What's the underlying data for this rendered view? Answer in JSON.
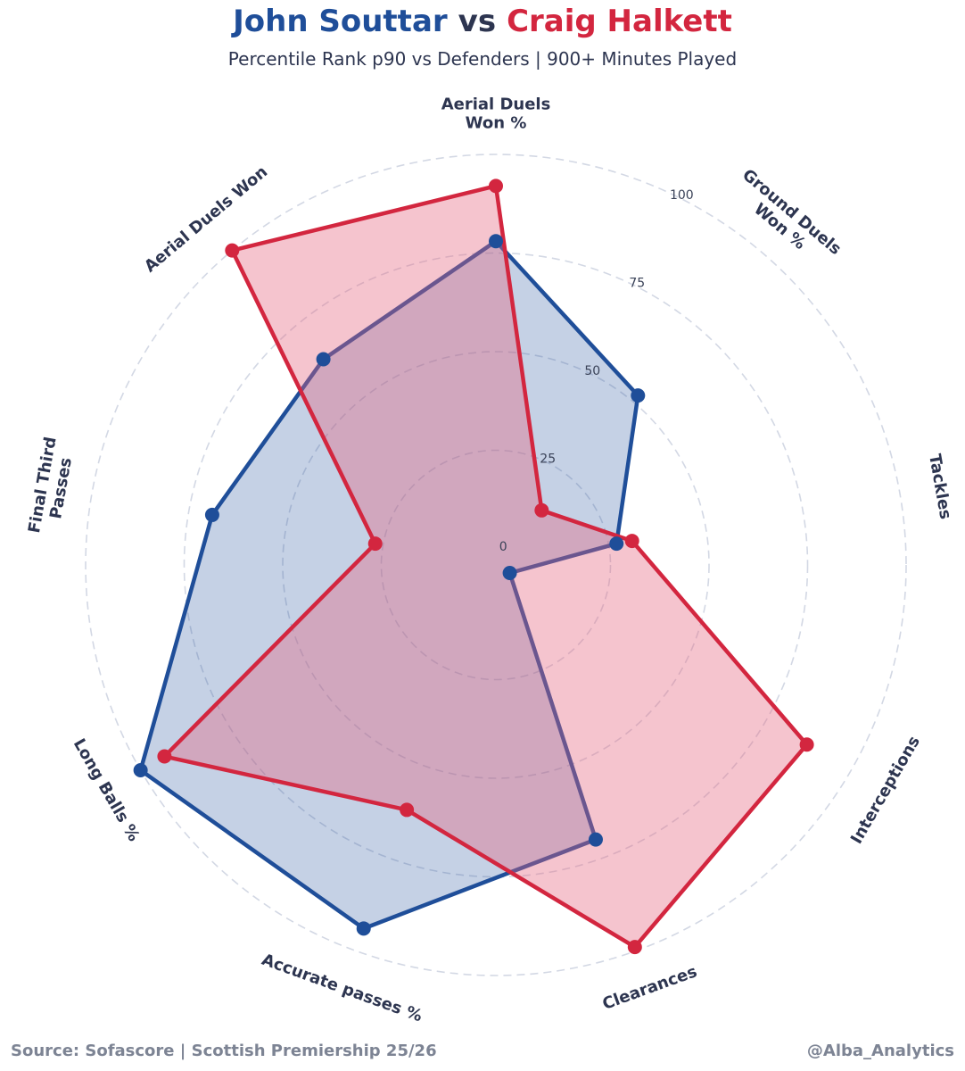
{
  "header": {
    "player1": "John Souttar",
    "vs": "vs",
    "player2": "Craig Halkett",
    "subtitle": "Percentile Rank p90 vs Defenders | 900+ Minutes Played"
  },
  "footer": {
    "source": "Source: Sofascore | Scottish Premiership 25/26",
    "handle": "@Alba_Analytics"
  },
  "chart_data": {
    "type": "radar",
    "title": "John Souttar vs Craig Halkett",
    "subtitle": "Percentile Rank p90 vs Defenders | 900+ Minutes Played",
    "categories": [
      [
        "Aerial Duels",
        "Won %"
      ],
      [
        "Ground Duels",
        "Won %"
      ],
      [
        "Tackles"
      ],
      [
        "Interceptions"
      ],
      [
        "Clearances"
      ],
      [
        "Accurate passes %"
      ],
      [
        "Long Balls %"
      ],
      [
        "Final Third",
        "Passes"
      ],
      [
        "Aerial Duels Won"
      ]
    ],
    "rlim": [
      0,
      100
    ],
    "ticks": [
      0,
      25,
      50,
      75,
      100
    ],
    "series": [
      {
        "name": "John Souttar",
        "color": "#1f4e99",
        "fill": "rgba(31,78,153,0.26)",
        "values": [
          78,
          52,
          27,
          0,
          70,
          94,
          100,
          69,
          64
        ]
      },
      {
        "name": "Craig Halkett",
        "color": "#d3263f",
        "fill": "rgba(230,100,125,0.38)",
        "values": [
          92,
          14,
          31,
          87,
          99,
          62,
          93,
          27,
          100
        ]
      }
    ]
  }
}
